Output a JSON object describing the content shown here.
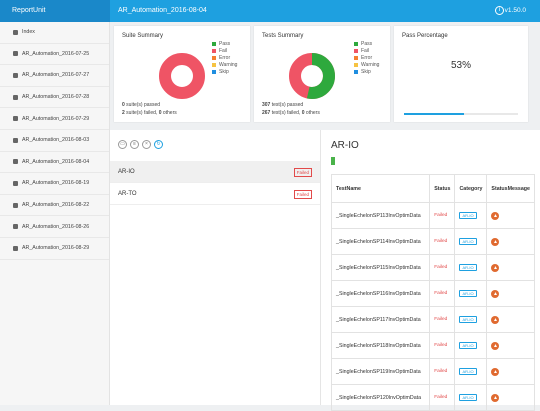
{
  "app": {
    "brand": "ReportUnit",
    "report_title": "AR_Automation_2016-08-04",
    "version": "v1.50.0"
  },
  "sidebar": {
    "items": [
      {
        "label": "Index"
      },
      {
        "label": "AR_Automation_2016-07-25"
      },
      {
        "label": "AR_Automation_2016-07-27"
      },
      {
        "label": "AR_Automation_2016-07-28"
      },
      {
        "label": "AR_Automation_2016-07-29"
      },
      {
        "label": "AR_Automation_2016-08-03"
      },
      {
        "label": "AR_Automation_2016-08-04"
      },
      {
        "label": "AR_Automation_2016-08-19"
      },
      {
        "label": "AR_Automation_2016-08-22"
      },
      {
        "label": "AR_Automation_2016-08-26"
      },
      {
        "label": "AR_Automation_2016-08-29"
      }
    ]
  },
  "legend": {
    "pass": "Pass",
    "fail": "Fail",
    "error": "Error",
    "warning": "Warning",
    "skip": "Skip"
  },
  "colors": {
    "pass": "#2ea93d",
    "fail": "#ef5465",
    "error": "#f57f2f",
    "warning": "#f6c343",
    "skip": "#1f8ee0"
  },
  "suite_summary": {
    "title": "Suite Summary",
    "line1_num": "0",
    "line1_txt": "suite(s) passed",
    "line2_num": "2",
    "line2_txt": "suite(s) failed,",
    "line2_num2": "0",
    "line2_txt2": "others",
    "pass_fraction": 0
  },
  "tests_summary": {
    "title": "Tests Summary",
    "line1_num": "307",
    "line1_txt": "test(s) passed",
    "line2_num": "267",
    "line2_txt": "test(s) failed,",
    "line2_num2": "0",
    "line2_txt2": "others",
    "pass_fraction": 0.535
  },
  "pass_percentage": {
    "title": "Pass Percentage",
    "value": "53%",
    "fraction": 0.53
  },
  "tests": [
    {
      "name": "AR-IO",
      "status": "Failed"
    },
    {
      "name": "AR-TO",
      "status": "Failed"
    }
  ],
  "detail": {
    "title": "AR-IO",
    "headers": {
      "name": "TestName",
      "status": "Status",
      "category": "Category",
      "message": "StatusMessage"
    },
    "rows": [
      {
        "name": "_SingleEchelonSP113InvOptimData",
        "status": "Failed",
        "category": "AR-IO"
      },
      {
        "name": "_SingleEchelonSP114InvOptimData",
        "status": "Failed",
        "category": "AR-IO"
      },
      {
        "name": "_SingleEchelonSP115InvOptimData",
        "status": "Failed",
        "category": "AR-IO"
      },
      {
        "name": "_SingleEchelonSP116InvOptimData",
        "status": "Failed",
        "category": "AR-IO"
      },
      {
        "name": "_SingleEchelonSP117InvOptimData",
        "status": "Failed",
        "category": "AR-IO"
      },
      {
        "name": "_SingleEchelonSP118InvOptimData",
        "status": "Failed",
        "category": "AR-IO"
      },
      {
        "name": "_SingleEchelonSP119InvOptimData",
        "status": "Failed",
        "category": "AR-IO"
      },
      {
        "name": "_SingleEchelonSP120InvOptimData",
        "status": "Failed",
        "category": "AR-IO"
      }
    ]
  }
}
